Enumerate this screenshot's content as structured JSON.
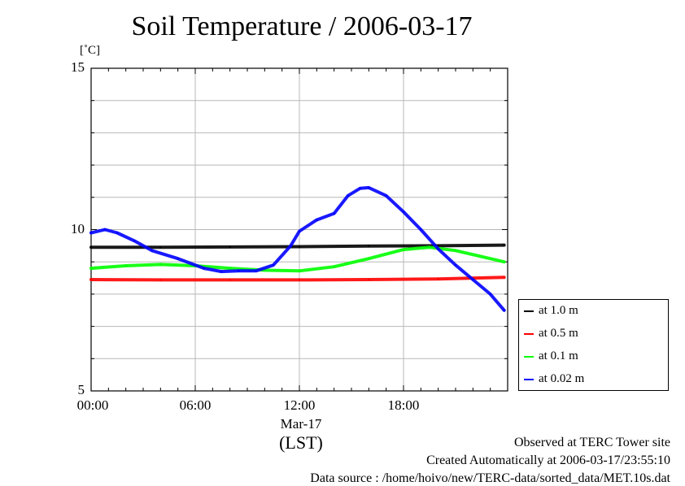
{
  "chart_data": {
    "type": "line",
    "title": "Soil Temperature / 2006-03-17",
    "ylabel": "[˚C]",
    "xlabel": "(LST)",
    "date_label": "Mar-17",
    "ylim": [
      5,
      15
    ],
    "xlim": [
      0,
      24
    ],
    "y_ticks": [
      "5",
      "10",
      "15"
    ],
    "x_ticks": [
      {
        "value": 0,
        "label": "00:00"
      },
      {
        "value": 6,
        "label": "06:00"
      },
      {
        "value": 12,
        "label": "12:00"
      },
      {
        "value": 18,
        "label": "18:00"
      }
    ],
    "grid": true,
    "legend_position": "right",
    "series": [
      {
        "name": "at 1.0 m",
        "color": "#000000",
        "x": [
          0,
          4,
          8,
          12,
          16,
          20,
          23.8
        ],
        "y": [
          9.45,
          9.45,
          9.46,
          9.47,
          9.49,
          9.5,
          9.52
        ]
      },
      {
        "name": "at 0.5 m",
        "color": "#ff0000",
        "x": [
          0,
          4,
          8,
          12,
          16,
          20,
          23.8
        ],
        "y": [
          8.45,
          8.44,
          8.44,
          8.44,
          8.45,
          8.47,
          8.52
        ]
      },
      {
        "name": "at 0.1 m",
        "color": "#00ff00",
        "x": [
          0,
          2,
          4,
          6,
          8,
          10,
          12,
          14,
          16,
          18,
          19.5,
          21,
          23.8
        ],
        "y": [
          8.8,
          8.88,
          8.92,
          8.88,
          8.8,
          8.74,
          8.72,
          8.85,
          9.1,
          9.38,
          9.45,
          9.35,
          9.0
        ]
      },
      {
        "name": "at 0.02 m",
        "color": "#0000ff",
        "x": [
          0,
          0.8,
          1.5,
          2.5,
          3.5,
          5,
          6.5,
          7.5,
          8.5,
          9.5,
          10.5,
          11.5,
          12,
          13,
          14,
          14.8,
          15.5,
          16,
          17,
          18,
          19,
          20,
          21,
          22,
          23,
          23.8
        ],
        "y": [
          9.9,
          10.0,
          9.9,
          9.65,
          9.35,
          9.1,
          8.8,
          8.7,
          8.72,
          8.72,
          8.9,
          9.5,
          9.95,
          10.3,
          10.5,
          11.05,
          11.28,
          11.3,
          11.05,
          10.55,
          10.0,
          9.4,
          8.9,
          8.45,
          8.0,
          7.5
        ]
      }
    ]
  },
  "footer": {
    "line1": "Observed at TERC Tower site",
    "line2": "Created Automatically at 2006-03-17/23:55:10",
    "line3": "Data source : /home/hoivo/new/TERC-data/sorted_data/MET.10s.dat"
  }
}
